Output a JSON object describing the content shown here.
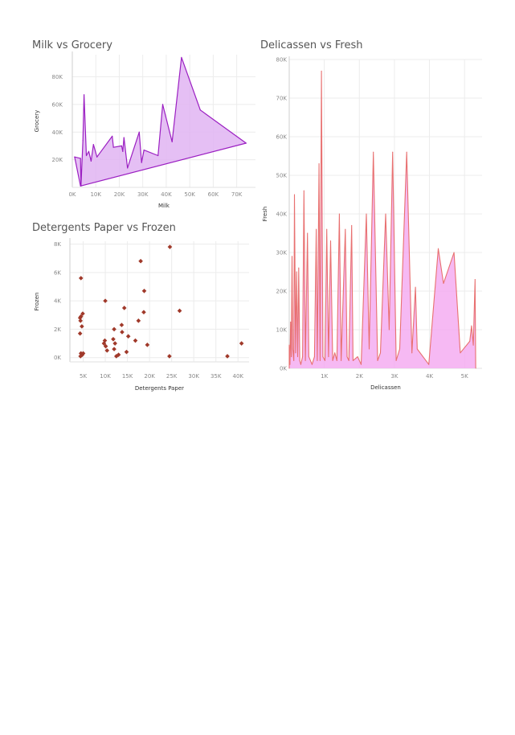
{
  "chart_data": [
    {
      "id": "milk-grocery",
      "type": "area",
      "title": "Milk vs Grocery",
      "xlabel": "Milk",
      "ylabel": "Grocery",
      "xlim": [
        0,
        78000
      ],
      "ylim": [
        0,
        96000
      ],
      "xticks": [
        0,
        10000,
        20000,
        30000,
        40000,
        50000,
        60000,
        70000
      ],
      "xtick_labels": [
        "0K",
        "10K",
        "20K",
        "30K",
        "40K",
        "50K",
        "60K",
        "70K"
      ],
      "yticks": [
        20000,
        40000,
        60000,
        80000
      ],
      "ytick_labels": [
        "20K",
        "40K",
        "60K",
        "80K"
      ],
      "grid": true,
      "colors": {
        "line": "#9b1fc2",
        "fill": "#e0b4f2"
      },
      "points": [
        [
          1000,
          22000
        ],
        [
          3500,
          21000
        ],
        [
          3700,
          1000
        ],
        [
          4500,
          34000
        ],
        [
          5000,
          67000
        ],
        [
          6000,
          23000
        ],
        [
          7000,
          26000
        ],
        [
          8000,
          19000
        ],
        [
          9000,
          31000
        ],
        [
          10500,
          22000
        ],
        [
          17000,
          37000
        ],
        [
          17500,
          29000
        ],
        [
          21000,
          30000
        ],
        [
          21500,
          26000
        ],
        [
          22000,
          36000
        ],
        [
          23500,
          14000
        ],
        [
          28500,
          40000
        ],
        [
          29500,
          18000
        ],
        [
          30500,
          27000
        ],
        [
          36500,
          23000
        ],
        [
          38500,
          60000
        ],
        [
          42500,
          33000
        ],
        [
          46500,
          94000
        ],
        [
          54500,
          56000
        ],
        [
          74000,
          32000
        ],
        [
          3500,
          1000
        ],
        [
          1000,
          22000
        ]
      ]
    },
    {
      "id": "detergents-frozen",
      "type": "scatter",
      "title": "Detergents Paper vs Frozen",
      "xlabel": "Detergents Paper",
      "ylabel": "Frozen",
      "xlim": [
        2000,
        42500
      ],
      "ylim": [
        -300,
        8200
      ],
      "xticks": [
        5000,
        10000,
        15000,
        20000,
        25000,
        30000,
        35000,
        40000
      ],
      "xtick_labels": [
        "5K",
        "10K",
        "15K",
        "20K",
        "25K",
        "30K",
        "35K",
        "40K"
      ],
      "yticks": [
        0,
        2000,
        4000,
        6000,
        8000
      ],
      "ytick_labels": [
        "0K",
        "2K",
        "4K",
        "6K",
        "8K"
      ],
      "grid": true,
      "colors": {
        "marker": "#a0392a"
      },
      "points": [
        [
          4500,
          5600
        ],
        [
          4300,
          2800
        ],
        [
          4400,
          2600
        ],
        [
          4500,
          2900
        ],
        [
          4700,
          2200
        ],
        [
          4900,
          3100
        ],
        [
          4300,
          1700
        ],
        [
          4500,
          300
        ],
        [
          4800,
          200
        ],
        [
          5000,
          300
        ],
        [
          4400,
          100
        ],
        [
          10000,
          4000
        ],
        [
          9700,
          1000
        ],
        [
          9900,
          1200
        ],
        [
          10100,
          800
        ],
        [
          10400,
          500
        ],
        [
          12000,
          2000
        ],
        [
          12200,
          1000
        ],
        [
          12000,
          600
        ],
        [
          11800,
          1300
        ],
        [
          12500,
          100
        ],
        [
          13000,
          200
        ],
        [
          13800,
          1800
        ],
        [
          14300,
          3500
        ],
        [
          13700,
          2300
        ],
        [
          14800,
          400
        ],
        [
          15200,
          1500
        ],
        [
          16800,
          1200
        ],
        [
          17500,
          2600
        ],
        [
          18000,
          6800
        ],
        [
          18800,
          4700
        ],
        [
          18700,
          3200
        ],
        [
          19500,
          900
        ],
        [
          24600,
          7800
        ],
        [
          24500,
          100
        ],
        [
          26800,
          3300
        ],
        [
          37600,
          100
        ],
        [
          40800,
          1000
        ]
      ]
    },
    {
      "id": "delicassen-fresh",
      "type": "area",
      "title": "Delicassen vs Fresh",
      "xlabel": "Delicassen",
      "ylabel": "Fresh",
      "xlim": [
        0,
        5500
      ],
      "ylim": [
        0,
        80000
      ],
      "xticks": [
        1000,
        2000,
        3000,
        4000,
        5000
      ],
      "xtick_labels": [
        "1K",
        "2K",
        "3K",
        "4K",
        "5K"
      ],
      "yticks": [
        0,
        10000,
        20000,
        30000,
        40000,
        50000,
        60000,
        70000,
        80000
      ],
      "ytick_labels": [
        "0K",
        "10K",
        "20K",
        "30K",
        "40K",
        "50K",
        "60K",
        "70K",
        "80K"
      ],
      "grid": true,
      "colors": {
        "line": "#e87070",
        "fill": "#f4a8f0"
      },
      "points": [
        [
          0,
          0
        ],
        [
          0,
          6000
        ],
        [
          20,
          1000
        ],
        [
          40,
          12000
        ],
        [
          60,
          3000
        ],
        [
          80,
          29000
        ],
        [
          100,
          5000
        ],
        [
          130,
          2000
        ],
        [
          150,
          45000
        ],
        [
          180,
          4000
        ],
        [
          210,
          25000
        ],
        [
          240,
          3000
        ],
        [
          270,
          26000
        ],
        [
          300,
          2000
        ],
        [
          330,
          1000
        ],
        [
          380,
          3000
        ],
        [
          420,
          46000
        ],
        [
          460,
          2000
        ],
        [
          520,
          35000
        ],
        [
          560,
          3000
        ],
        [
          650,
          1000
        ],
        [
          720,
          3000
        ],
        [
          770,
          36000
        ],
        [
          800,
          2000
        ],
        [
          850,
          53000
        ],
        [
          880,
          2000
        ],
        [
          920,
          77000
        ],
        [
          960,
          3000
        ],
        [
          1020,
          2000
        ],
        [
          1070,
          36000
        ],
        [
          1120,
          3000
        ],
        [
          1180,
          33000
        ],
        [
          1240,
          2000
        ],
        [
          1300,
          4000
        ],
        [
          1360,
          2000
        ],
        [
          1430,
          40000
        ],
        [
          1480,
          2000
        ],
        [
          1600,
          36000
        ],
        [
          1650,
          3000
        ],
        [
          1700,
          2000
        ],
        [
          1780,
          37000
        ],
        [
          1820,
          2000
        ],
        [
          1950,
          3000
        ],
        [
          2050,
          1000
        ],
        [
          2200,
          40000
        ],
        [
          2280,
          5000
        ],
        [
          2400,
          56000
        ],
        [
          2520,
          2000
        ],
        [
          2600,
          4000
        ],
        [
          2750,
          40000
        ],
        [
          2850,
          10000
        ],
        [
          2950,
          56000
        ],
        [
          3050,
          2000
        ],
        [
          3150,
          5000
        ],
        [
          3350,
          56000
        ],
        [
          3500,
          4000
        ],
        [
          3600,
          21000
        ],
        [
          3650,
          5000
        ],
        [
          3980,
          1000
        ],
        [
          4250,
          31000
        ],
        [
          4400,
          22000
        ],
        [
          4700,
          30000
        ],
        [
          4880,
          4000
        ],
        [
          5150,
          7000
        ],
        [
          5200,
          11000
        ],
        [
          5250,
          6000
        ],
        [
          5300,
          23000
        ],
        [
          5320,
          0
        ]
      ]
    }
  ]
}
